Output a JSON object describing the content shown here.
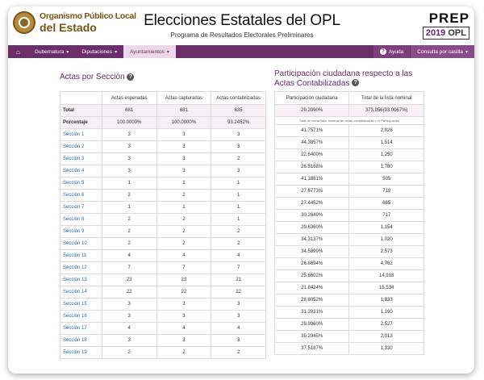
{
  "header": {
    "logo_line1": "Organismo Público Local",
    "logo_line2": "del Estado",
    "title": "Elecciones Estatales del OPL",
    "subtitle": "Programa de Resultados Electorales Preliminares",
    "prep_logo": "PREP",
    "prep_year": "2019",
    "prep_org": "OPL"
  },
  "nav": {
    "home_icon": "home-icon",
    "items": [
      {
        "label": "Gubernatura"
      },
      {
        "label": "Diputaciones"
      },
      {
        "label": "Ayuntamientos"
      }
    ],
    "help_label": "Ayuda",
    "consulta_label": "Consulta por casilla"
  },
  "left": {
    "title": "Actas por Sección",
    "columns": [
      "Actas esperadas",
      "Actas capturadas",
      "Actas contabilizadas"
    ],
    "total": {
      "label": "Total",
      "values": [
        "681",
        "681",
        "635"
      ]
    },
    "porcentaje": {
      "label": "Porcentaje",
      "values": [
        "100.0000%",
        "100.0000%",
        "93.2452%"
      ]
    },
    "rows": [
      {
        "seccion": "Sección 1",
        "values": [
          "3",
          "3",
          "3"
        ]
      },
      {
        "seccion": "Sección 2",
        "values": [
          "3",
          "3",
          "3"
        ]
      },
      {
        "seccion": "Sección 3",
        "values": [
          "3",
          "3",
          "2"
        ]
      },
      {
        "seccion": "Sección 4",
        "values": [
          "3",
          "3",
          "3"
        ]
      },
      {
        "seccion": "Sección 5",
        "values": [
          "1",
          "1",
          "1"
        ]
      },
      {
        "seccion": "Sección 6",
        "values": [
          "2",
          "2",
          "1"
        ]
      },
      {
        "seccion": "Sección 7",
        "values": [
          "1",
          "1",
          "1"
        ]
      },
      {
        "seccion": "Sección 8",
        "values": [
          "2",
          "2",
          "1"
        ]
      },
      {
        "seccion": "Sección 9",
        "values": [
          "2",
          "2",
          "2"
        ]
      },
      {
        "seccion": "Sección 10",
        "values": [
          "2",
          "2",
          "2"
        ]
      },
      {
        "seccion": "Sección 11",
        "values": [
          "4",
          "4",
          "4"
        ]
      },
      {
        "seccion": "Sección 12",
        "values": [
          "7",
          "7",
          "7"
        ]
      },
      {
        "seccion": "Sección 13",
        "values": [
          "23",
          "23",
          "21"
        ]
      },
      {
        "seccion": "Sección 14",
        "values": [
          "22",
          "22",
          "22"
        ]
      },
      {
        "seccion": "Sección 15",
        "values": [
          "3",
          "3",
          "3"
        ]
      },
      {
        "seccion": "Sección 16",
        "values": [
          "3",
          "3",
          "3"
        ]
      },
      {
        "seccion": "Sección 17",
        "values": [
          "4",
          "4",
          "4"
        ]
      },
      {
        "seccion": "Sección 18",
        "values": [
          "3",
          "3",
          "3"
        ]
      },
      {
        "seccion": "Sección 19",
        "values": [
          "2",
          "2",
          "2"
        ]
      }
    ]
  },
  "right": {
    "title_line1": "Participación ciudadana respecto a las",
    "title_line2": "Actas Contabilizadas",
    "columns": [
      "Participación ciudadana",
      "Total de la lista nominal"
    ],
    "total": {
      "values": [
        "29.2090%",
        "373,956(93.0067%)"
      ]
    },
    "note": "Total de votos/Valor nominal de actas contabilizadas x % Participación",
    "rows": [
      {
        "values": [
          "41.7571%",
          "2,026"
        ]
      },
      {
        "values": [
          "44.3857%",
          "1,514"
        ]
      },
      {
        "values": [
          "22.6400%",
          "1,250"
        ]
      },
      {
        "values": [
          "26.5168%",
          "1,780"
        ]
      },
      {
        "values": [
          "41.1881%",
          "505"
        ]
      },
      {
        "values": [
          "27.6773%",
          "719"
        ]
      },
      {
        "values": [
          "27.4452%",
          "685"
        ]
      },
      {
        "values": [
          "30.2649%",
          "717"
        ]
      },
      {
        "values": [
          "29.6360%",
          "1,154"
        ]
      },
      {
        "values": [
          "34.3137%",
          "1,020"
        ]
      },
      {
        "values": [
          "34.5899%",
          "2,573"
        ]
      },
      {
        "values": [
          "26.6694%",
          "4,762"
        ]
      },
      {
        "values": [
          "25.6602%",
          "14,918"
        ]
      },
      {
        "values": [
          "21.8424%",
          "15,534"
        ]
      },
      {
        "values": [
          "28.8052%",
          "1,833"
        ]
      },
      {
        "values": [
          "31.2931%",
          "1,160"
        ]
      },
      {
        "values": [
          "29.9960%",
          "2,527"
        ]
      },
      {
        "values": [
          "39.2945%",
          "2,013"
        ]
      },
      {
        "values": [
          "37.5187%",
          "1,330"
        ]
      }
    ]
  }
}
